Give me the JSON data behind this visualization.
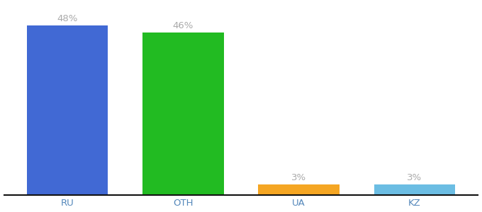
{
  "categories": [
    "RU",
    "OTH",
    "UA",
    "KZ"
  ],
  "values": [
    48,
    46,
    3,
    3
  ],
  "labels": [
    "48%",
    "46%",
    "3%",
    "3%"
  ],
  "bar_colors": [
    "#4169d4",
    "#22bb22",
    "#f5a623",
    "#6bbde3"
  ],
  "background_color": "#ffffff",
  "ylim": [
    0,
    54
  ],
  "label_fontsize": 9.5,
  "tick_fontsize": 9.5,
  "label_color": "#aaaaaa",
  "tick_color": "#5588bb",
  "bar_width": 0.7
}
